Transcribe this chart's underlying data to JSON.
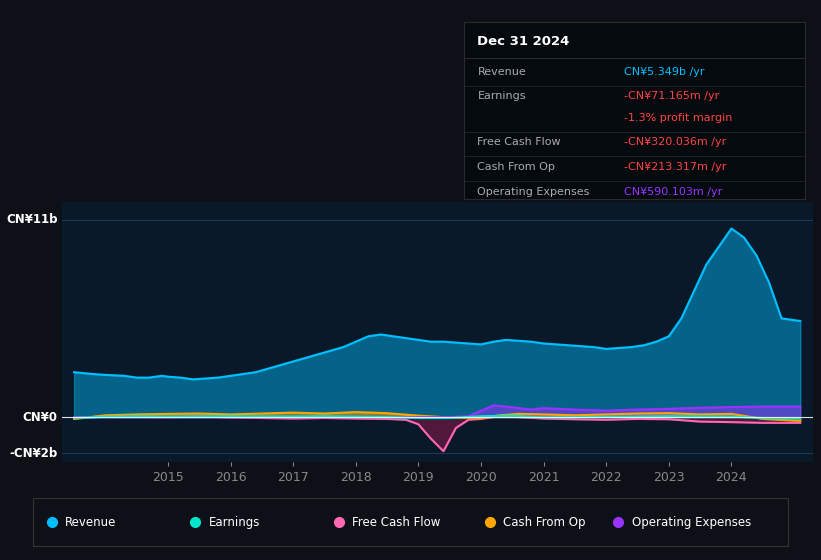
{
  "bg_color": "#0d1117",
  "chart_bg": "#0a1929",
  "ylim": [
    -2500000000.0,
    12000000000.0
  ],
  "y_ticks_labels": [
    [
      "CN¥11b",
      11000000000.0
    ],
    [
      "CN¥0",
      0
    ],
    [
      "-CN¥2b",
      -2000000000.0
    ]
  ],
  "colors": {
    "revenue": "#00bfff",
    "earnings": "#00e5cc",
    "free_cash_flow": "#ff69b4",
    "cash_from_op": "#ffa500",
    "operating_expenses": "#9933ff"
  },
  "legend": [
    "Revenue",
    "Earnings",
    "Free Cash Flow",
    "Cash From Op",
    "Operating Expenses"
  ],
  "legend_colors": [
    "#00bfff",
    "#00e5cc",
    "#ff69b4",
    "#ffa500",
    "#9933ff"
  ],
  "x_ticks": [
    2015,
    2016,
    2017,
    2018,
    2019,
    2020,
    2021,
    2022,
    2023,
    2024
  ],
  "xlim": [
    2013.3,
    2025.3
  ],
  "tooltip_title": "Dec 31 2024",
  "tooltip_rows": [
    {
      "label": "Revenue",
      "value": "CN¥5.349b /yr",
      "value_color": "#00bfff",
      "divider_above": false
    },
    {
      "label": "Earnings",
      "value": "-CN¥71.165m /yr",
      "value_color": "#ff4444",
      "divider_above": true
    },
    {
      "label": "",
      "value": "-1.3% profit margin",
      "value_color": "#ff4444",
      "divider_above": false
    },
    {
      "label": "Free Cash Flow",
      "value": "-CN¥320.036m /yr",
      "value_color": "#ff4444",
      "divider_above": true
    },
    {
      "label": "Cash From Op",
      "value": "-CN¥213.317m /yr",
      "value_color": "#ff4444",
      "divider_above": true
    },
    {
      "label": "Operating Expenses",
      "value": "CN¥590.103m /yr",
      "value_color": "#9933ff",
      "divider_above": true
    }
  ],
  "revenue_x": [
    2013.5,
    2013.8,
    2014.0,
    2014.3,
    2014.5,
    2014.7,
    2014.9,
    2015.0,
    2015.2,
    2015.4,
    2015.6,
    2015.8,
    2016.0,
    2016.2,
    2016.4,
    2016.6,
    2016.8,
    2017.0,
    2017.2,
    2017.4,
    2017.6,
    2017.8,
    2018.0,
    2018.2,
    2018.4,
    2018.6,
    2018.8,
    2019.0,
    2019.2,
    2019.4,
    2019.6,
    2019.8,
    2020.0,
    2020.2,
    2020.4,
    2020.6,
    2020.8,
    2021.0,
    2021.2,
    2021.4,
    2021.6,
    2021.8,
    2022.0,
    2022.2,
    2022.4,
    2022.6,
    2022.8,
    2023.0,
    2023.2,
    2023.4,
    2023.6,
    2023.8,
    2024.0,
    2024.2,
    2024.4,
    2024.6,
    2024.8,
    2025.1
  ],
  "revenue_y": [
    2500000000.0,
    2400000000.0,
    2350000000.0,
    2300000000.0,
    2200000000.0,
    2200000000.0,
    2300000000.0,
    2250000000.0,
    2200000000.0,
    2100000000.0,
    2150000000.0,
    2200000000.0,
    2300000000.0,
    2400000000.0,
    2500000000.0,
    2700000000.0,
    2900000000.0,
    3100000000.0,
    3300000000.0,
    3500000000.0,
    3700000000.0,
    3900000000.0,
    4200000000.0,
    4500000000.0,
    4600000000.0,
    4500000000.0,
    4400000000.0,
    4300000000.0,
    4200000000.0,
    4200000000.0,
    4150000000.0,
    4100000000.0,
    4050000000.0,
    4200000000.0,
    4300000000.0,
    4250000000.0,
    4200000000.0,
    4100000000.0,
    4050000000.0,
    4000000000.0,
    3950000000.0,
    3900000000.0,
    3800000000.0,
    3850000000.0,
    3900000000.0,
    4000000000.0,
    4200000000.0,
    4500000000.0,
    5500000000.0,
    7000000000.0,
    8500000000.0,
    9500000000.0,
    10500000000.0,
    10000000000.0,
    9000000000.0,
    7500000000.0,
    5500000000.0,
    5350000000.0
  ],
  "earnings_x": [
    2013.5,
    2014.0,
    2014.5,
    2015.0,
    2015.5,
    2016.0,
    2016.5,
    2017.0,
    2017.5,
    2018.0,
    2018.5,
    2019.0,
    2019.5,
    2020.0,
    2020.5,
    2021.0,
    2021.5,
    2022.0,
    2022.5,
    2023.0,
    2023.5,
    2024.0,
    2024.5,
    2025.1
  ],
  "earnings_y": [
    -50000000.0,
    20000000.0,
    50000000.0,
    30000000.0,
    40000000.0,
    50000000.0,
    40000000.0,
    30000000.0,
    50000000.0,
    20000000.0,
    0.0,
    -50000000.0,
    -50000000.0,
    50000000.0,
    80000000.0,
    -20000000.0,
    -10000000.0,
    20000000.0,
    30000000.0,
    50000000.0,
    40000000.0,
    30000000.0,
    -50000000.0,
    -70000000.0
  ],
  "fcf_x": [
    2013.5,
    2014.0,
    2014.5,
    2015.0,
    2015.5,
    2016.0,
    2016.5,
    2017.0,
    2017.5,
    2018.0,
    2018.5,
    2018.8,
    2019.0,
    2019.2,
    2019.4,
    2019.6,
    2019.8,
    2020.0,
    2020.3,
    2020.6,
    2021.0,
    2021.5,
    2022.0,
    2022.5,
    2023.0,
    2023.5,
    2024.0,
    2024.5,
    2025.1
  ],
  "fcf_y": [
    -20000000.0,
    20000000.0,
    10000000.0,
    0.0,
    30000000.0,
    -20000000.0,
    -50000000.0,
    -80000000.0,
    -50000000.0,
    -80000000.0,
    -100000000.0,
    -150000000.0,
    -400000000.0,
    -1200000000.0,
    -1900000000.0,
    -600000000.0,
    -150000000.0,
    -100000000.0,
    50000000.0,
    0.0,
    -80000000.0,
    -120000000.0,
    -150000000.0,
    -100000000.0,
    -120000000.0,
    -250000000.0,
    -280000000.0,
    -320000000.0,
    -320000000.0
  ],
  "cfop_x": [
    2013.5,
    2014.0,
    2014.5,
    2015.0,
    2015.5,
    2016.0,
    2016.5,
    2017.0,
    2017.5,
    2018.0,
    2018.5,
    2019.0,
    2019.5,
    2020.0,
    2020.3,
    2020.6,
    2021.0,
    2021.5,
    2022.0,
    2022.5,
    2023.0,
    2023.5,
    2024.0,
    2024.5,
    2025.1
  ],
  "cfop_y": [
    -100000000.0,
    100000000.0,
    150000000.0,
    180000000.0,
    200000000.0,
    150000000.0,
    200000000.0,
    250000000.0,
    200000000.0,
    280000000.0,
    220000000.0,
    80000000.0,
    -20000000.0,
    -50000000.0,
    100000000.0,
    180000000.0,
    150000000.0,
    100000000.0,
    150000000.0,
    200000000.0,
    220000000.0,
    150000000.0,
    180000000.0,
    -100000000.0,
    -210000000.0
  ],
  "opex_x": [
    2013.5,
    2014.0,
    2014.5,
    2015.0,
    2015.5,
    2016.0,
    2016.5,
    2017.0,
    2017.5,
    2018.0,
    2018.5,
    2019.0,
    2019.5,
    2019.8,
    2020.0,
    2020.2,
    2020.5,
    2020.8,
    2021.0,
    2021.5,
    2022.0,
    2022.5,
    2023.0,
    2023.5,
    2024.0,
    2024.5,
    2025.1
  ],
  "opex_y": [
    0.0,
    0.0,
    0.0,
    0.0,
    0.0,
    0.0,
    0.0,
    0.0,
    0.0,
    0.0,
    0.0,
    0.0,
    0.0,
    50000000.0,
    350000000.0,
    650000000.0,
    550000000.0,
    420000000.0,
    500000000.0,
    420000000.0,
    360000000.0,
    420000000.0,
    460000000.0,
    520000000.0,
    560000000.0,
    590000000.0,
    590000000.0
  ]
}
